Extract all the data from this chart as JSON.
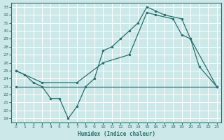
{
  "xlabel": "Humidex (Indice chaleur)",
  "bg_color": "#cce8e8",
  "line_color": "#2a7070",
  "grid_color": "#ffffff",
  "xlim": [
    -0.5,
    23.5
  ],
  "ylim": [
    18.5,
    33.5
  ],
  "yticks": [
    19,
    20,
    21,
    22,
    23,
    24,
    25,
    26,
    27,
    28,
    29,
    30,
    31,
    32,
    33
  ],
  "xticks": [
    0,
    1,
    2,
    3,
    4,
    5,
    6,
    7,
    8,
    9,
    10,
    11,
    12,
    13,
    14,
    15,
    16,
    17,
    18,
    19,
    20,
    21,
    22,
    23
  ],
  "series": [
    {
      "x": [
        0,
        1,
        2,
        3,
        4,
        5,
        6,
        7,
        8,
        9,
        10,
        11,
        12,
        13,
        14,
        15,
        16,
        17,
        19,
        20,
        23
      ],
      "y": [
        25.0,
        24.5,
        23.5,
        23.0,
        21.5,
        21.5,
        19.0,
        20.5,
        23.0,
        24.0,
        27.5,
        28.0,
        29.0,
        30.0,
        31.0,
        33.0,
        32.5,
        32.0,
        31.5,
        29.0,
        23.0
      ]
    },
    {
      "x": [
        0,
        3,
        7,
        10,
        13,
        15,
        16,
        18,
        19,
        20,
        21,
        23
      ],
      "y": [
        25.0,
        23.5,
        23.5,
        26.0,
        27.0,
        32.3,
        32.0,
        31.5,
        29.5,
        29.0,
        25.5,
        23.0
      ]
    },
    {
      "x": [
        0,
        23
      ],
      "y": [
        23.0,
        23.0
      ]
    }
  ]
}
